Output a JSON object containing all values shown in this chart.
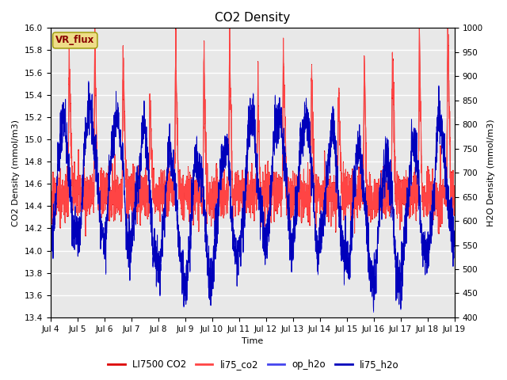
{
  "title": "CO2 Density",
  "xlabel": "Time",
  "ylabel_left": "CO2 Density (mmol/m3)",
  "ylabel_right": "H2O Density (mmol/m3)",
  "ylim_left": [
    13.4,
    16.0
  ],
  "ylim_right": [
    400,
    1000
  ],
  "yticks_left": [
    13.4,
    13.6,
    13.8,
    14.0,
    14.2,
    14.4,
    14.6,
    14.8,
    15.0,
    15.2,
    15.4,
    15.6,
    15.8,
    16.0
  ],
  "yticks_right": [
    400,
    450,
    500,
    550,
    600,
    650,
    700,
    750,
    800,
    850,
    900,
    950,
    1000
  ],
  "xtick_labels": [
    "Jul 4",
    "Jul 5",
    "Jul 6",
    "Jul 7",
    "Jul 8",
    "Jul 9",
    "Jul 10",
    "Jul 11",
    "Jul 12",
    "Jul 13",
    "Jul 14",
    "Jul 15",
    "Jul 16",
    "Jul 17",
    "Jul 18",
    "Jul 19"
  ],
  "legend_entries": [
    "LI7500 CO2",
    "li75_co2",
    "op_h2o",
    "li75_h2o"
  ],
  "vr_flux_label": "VR_flux",
  "vr_flux_bg": "#EEDD88",
  "vr_flux_text_color": "#880000",
  "background_color": "#E8E8E8",
  "grid_color": "#FFFFFF",
  "co2_color1": "#DD0000",
  "co2_color2": "#FF4444",
  "h2o_color1": "#4444EE",
  "h2o_color2": "#0000BB",
  "title_fontsize": 11,
  "axis_label_fontsize": 8,
  "tick_fontsize": 7.5,
  "legend_fontsize": 8.5
}
